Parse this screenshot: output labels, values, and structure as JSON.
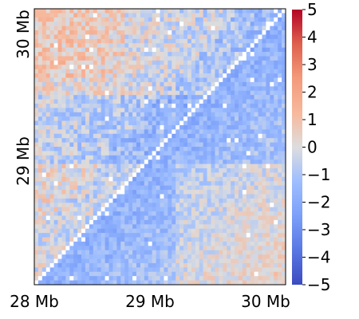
{
  "chart_data": {
    "type": "heatmap",
    "x_ticks": [
      "28 Mb",
      "29 Mb",
      "30 Mb"
    ],
    "y_ticks": [
      "29 Mb",
      "30 Mb"
    ],
    "x_tick_values_mb": [
      28,
      29,
      30
    ],
    "y_tick_values_mb": [
      29,
      30
    ],
    "x_range_mb": [
      28,
      30.1
    ],
    "y_range_mb": [
      28,
      30.1
    ],
    "bins_per_side": 64,
    "diagonal": "masked",
    "lower_triangle": "mostly negative (blue)",
    "upper_triangle": "mixed, mostly near zero with positive (salmon) patches",
    "colorbar": {
      "colormap": "coolwarm",
      "vmin": -5,
      "vmax": 5,
      "ticks": [
        "5",
        "4",
        "3",
        "2",
        "1",
        "0",
        "−1",
        "−2",
        "−3",
        "−4",
        "−5"
      ],
      "tick_values": [
        5,
        4,
        3,
        2,
        1,
        0,
        -1,
        -2,
        -3,
        -4,
        -5
      ]
    },
    "colors": {
      "low": "#3b4cc0",
      "mid": "#dddddd",
      "high": "#b40426",
      "masked": "#ffffff"
    }
  }
}
